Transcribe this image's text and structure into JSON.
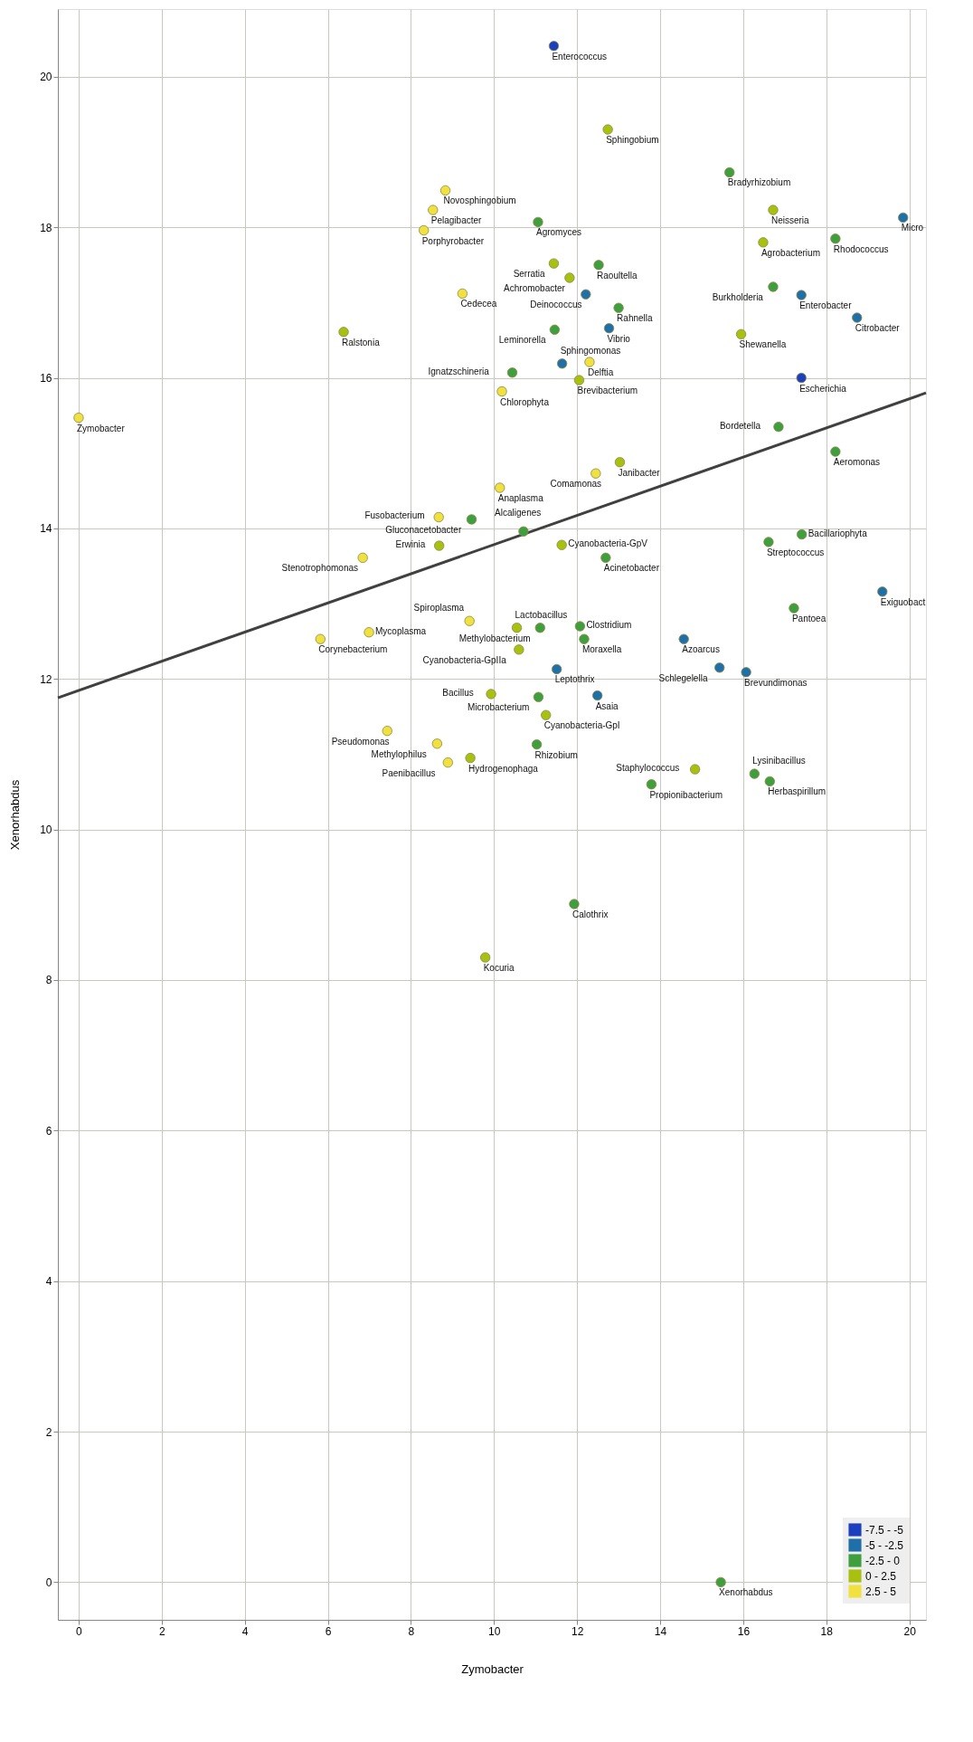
{
  "chart_data": {
    "type": "scatter",
    "xlabel": "Zymobacter",
    "ylabel": "Xenorhabdus",
    "xlim": [
      -0.5,
      20.4
    ],
    "ylim": [
      -0.5,
      20.9
    ],
    "xticks": [
      0,
      2,
      4,
      6,
      8,
      10,
      12,
      14,
      16,
      18,
      20
    ],
    "yticks": [
      0,
      2,
      4,
      6,
      8,
      10,
      12,
      14,
      16,
      18,
      20
    ],
    "grid": true,
    "legend": "bottom right",
    "marker": "circle",
    "series": [
      {
        "name": "-7.5 - -5",
        "color": "#1a3fbf",
        "x": [
          11.44,
          17.4
        ],
        "values": [
          20.41,
          16.0
        ]
      },
      {
        "name": "-5 - -2.5",
        "color": "#1f6fa8",
        "x": [
          19.85,
          17.4,
          18.74,
          12.21,
          12.77,
          11.64,
          11.51,
          12.49,
          14.57,
          15.43,
          16.07,
          19.35
        ],
        "values": [
          18.13,
          17.1,
          16.8,
          17.11,
          16.66,
          16.19,
          12.13,
          11.78,
          12.53,
          12.15,
          12.09,
          13.16
        ]
      },
      {
        "name": "-2.5 - 0",
        "color": "#3f9f3f",
        "x": [
          15.67,
          16.72,
          18.22,
          16.85,
          18.22,
          11.06,
          12.52,
          13.0,
          11.46,
          10.44,
          9.46,
          10.71,
          12.69,
          11.11,
          12.07,
          12.17,
          11.07,
          11.03,
          13.79,
          16.27,
          16.64,
          16.61,
          17.41,
          17.22,
          11.93,
          15.46
        ],
        "values": [
          18.73,
          17.21,
          17.85,
          15.35,
          15.02,
          18.07,
          17.5,
          16.93,
          16.64,
          16.07,
          14.12,
          13.96,
          13.61,
          12.68,
          12.7,
          12.53,
          11.76,
          11.13,
          10.6,
          10.74,
          10.64,
          13.82,
          13.92,
          12.94,
          9.01,
          0
        ]
      },
      {
        "name": "0 - 2.5",
        "color": "#a8c010",
        "x": [
          6.38,
          12.74,
          16.72,
          16.48,
          15.95,
          11.44,
          11.82,
          12.05,
          13.03,
          8.68,
          11.63,
          9.43,
          10.55,
          10.6,
          11.25,
          9.93,
          14.84,
          9.79
        ],
        "values": [
          16.61,
          19.3,
          18.23,
          17.8,
          16.58,
          17.52,
          17.33,
          15.97,
          14.88,
          13.77,
          13.78,
          10.95,
          12.68,
          12.39,
          11.52,
          11.8,
          10.8,
          8.3
        ]
      },
      {
        "name": "2.5 - 5",
        "color": "#f0e040",
        "x": [
          0,
          8.83,
          8.53,
          8.31,
          9.24,
          12.3,
          10.19,
          10.14,
          12.45,
          8.67,
          6.84,
          5.82,
          6.99,
          7.43,
          8.63,
          8.89,
          9.41
        ],
        "values": [
          15.47,
          18.49,
          18.23,
          17.96,
          17.12,
          16.21,
          15.82,
          14.54,
          14.73,
          14.15,
          13.61,
          12.53,
          12.62,
          11.31,
          11.14,
          10.89,
          12.77
        ]
      },
      {
        "type": "line",
        "marker": "none",
        "color": "#404040",
        "x": [
          -0.5,
          20.4
        ],
        "values": [
          11.75,
          15.8
        ]
      }
    ],
    "annotations": [
      {
        "text": "Enterococcus",
        "x": 11.44,
        "y": 20.41
      },
      {
        "text": "Escherichia",
        "x": 17.4,
        "y": 16.0
      },
      {
        "text": "Micro",
        "x": 19.85,
        "y": 18.13
      },
      {
        "text": "Enterobacter",
        "x": 17.4,
        "y": 17.1
      },
      {
        "text": "Citrobacter",
        "x": 18.74,
        "y": 16.8
      },
      {
        "text": "Deinococcus",
        "x": 12.21,
        "y": 17.11
      },
      {
        "text": "Vibrio",
        "x": 12.77,
        "y": 16.66
      },
      {
        "text": "Sphingomonas",
        "x": 11.64,
        "y": 16.19
      },
      {
        "text": "Leptothrix",
        "x": 11.51,
        "y": 12.13
      },
      {
        "text": "Asaia",
        "x": 12.49,
        "y": 11.78
      },
      {
        "text": "Azoarcus",
        "x": 14.57,
        "y": 12.53
      },
      {
        "text": "Schlegelella",
        "x": 15.43,
        "y": 12.15
      },
      {
        "text": "Brevundimonas",
        "x": 16.07,
        "y": 12.09
      },
      {
        "text": "Exiguobact",
        "x": 19.35,
        "y": 13.16
      },
      {
        "text": "Bradyrhizobium",
        "x": 15.67,
        "y": 18.73
      },
      {
        "text": "Burkholderia",
        "x": 16.72,
        "y": 17.21
      },
      {
        "text": "Rhodococcus",
        "x": 18.22,
        "y": 17.85
      },
      {
        "text": "Bordetella",
        "x": 16.85,
        "y": 15.35
      },
      {
        "text": "Aeromonas",
        "x": 18.22,
        "y": 15.02
      },
      {
        "text": "Agromyces",
        "x": 11.06,
        "y": 18.07
      },
      {
        "text": "Raoultella",
        "x": 12.52,
        "y": 17.5
      },
      {
        "text": "Rahnella",
        "x": 13.0,
        "y": 16.93
      },
      {
        "text": "Leminorella",
        "x": 11.46,
        "y": 16.64
      },
      {
        "text": "Ignatzschineria",
        "x": 10.44,
        "y": 16.07
      },
      {
        "text": "Gluconacetobacter",
        "x": 9.46,
        "y": 14.12
      },
      {
        "text": "Alcaligenes",
        "x": 10.71,
        "y": 13.96
      },
      {
        "text": "Acinetobacter",
        "x": 12.69,
        "y": 13.61
      },
      {
        "text": "Methylobacterium",
        "x": 11.11,
        "y": 12.68
      },
      {
        "text": "Clostridium",
        "x": 12.07,
        "y": 12.7
      },
      {
        "text": "Moraxella",
        "x": 12.17,
        "y": 12.53
      },
      {
        "text": "Microbacterium",
        "x": 11.07,
        "y": 11.76
      },
      {
        "text": "Rhizobium",
        "x": 11.03,
        "y": 11.13
      },
      {
        "text": "Propionibacterium",
        "x": 13.79,
        "y": 10.6
      },
      {
        "text": "Lysinibacillus",
        "x": 16.27,
        "y": 10.74
      },
      {
        "text": "Herbaspirillum",
        "x": 16.64,
        "y": 10.64
      },
      {
        "text": "Streptococcus",
        "x": 16.61,
        "y": 13.82
      },
      {
        "text": "Bacillariophyta",
        "x": 17.41,
        "y": 13.92
      },
      {
        "text": "Pantoea",
        "x": 17.22,
        "y": 12.94
      },
      {
        "text": "Calothrix",
        "x": 11.93,
        "y": 9.01
      },
      {
        "text": "Xenorhabdus",
        "x": 15.46,
        "y": 0
      },
      {
        "text": "Ralstonia",
        "x": 6.38,
        "y": 16.61
      },
      {
        "text": "Sphingobium",
        "x": 12.74,
        "y": 19.3
      },
      {
        "text": "Neisseria",
        "x": 16.72,
        "y": 18.23
      },
      {
        "text": "Agrobacterium",
        "x": 16.48,
        "y": 17.8
      },
      {
        "text": "Shewanella",
        "x": 15.95,
        "y": 16.58
      },
      {
        "text": "Serratia",
        "x": 11.44,
        "y": 17.52
      },
      {
        "text": "Achromobacter",
        "x": 11.82,
        "y": 17.33
      },
      {
        "text": "Brevibacterium",
        "x": 12.05,
        "y": 15.97
      },
      {
        "text": "Janibacter",
        "x": 13.03,
        "y": 14.88
      },
      {
        "text": "Erwinia",
        "x": 8.68,
        "y": 13.77
      },
      {
        "text": "Cyanobacteria-GpV",
        "x": 11.63,
        "y": 13.78
      },
      {
        "text": "Hydrogenophaga",
        "x": 9.43,
        "y": 10.95
      },
      {
        "text": "Lactobacillus",
        "x": 10.55,
        "y": 12.68
      },
      {
        "text": "Cyanobacteria-GpIIa",
        "x": 10.6,
        "y": 12.39
      },
      {
        "text": "Cyanobacteria-GpI",
        "x": 11.25,
        "y": 11.52
      },
      {
        "text": "Bacillus",
        "x": 9.93,
        "y": 11.8
      },
      {
        "text": "Staphylococcus",
        "x": 14.84,
        "y": 10.8
      },
      {
        "text": "Kocuria",
        "x": 9.79,
        "y": 8.3
      },
      {
        "text": "Zymobacter",
        "x": 0,
        "y": 15.47
      },
      {
        "text": "Novosphingobium",
        "x": 8.83,
        "y": 18.49
      },
      {
        "text": "Pelagibacter",
        "x": 8.53,
        "y": 18.23
      },
      {
        "text": "Porphyrobacter",
        "x": 8.31,
        "y": 17.96
      },
      {
        "text": "Cedecea",
        "x": 9.24,
        "y": 17.12
      },
      {
        "text": "Delftia",
        "x": 12.3,
        "y": 16.21
      },
      {
        "text": "Chlorophyta",
        "x": 10.19,
        "y": 15.82
      },
      {
        "text": "Anaplasma",
        "x": 10.14,
        "y": 14.54
      },
      {
        "text": "Comamonas",
        "x": 12.45,
        "y": 14.73
      },
      {
        "text": "Fusobacterium",
        "x": 8.67,
        "y": 14.15
      },
      {
        "text": "Stenotrophomonas",
        "x": 6.84,
        "y": 13.61
      },
      {
        "text": "Corynebacterium",
        "x": 5.82,
        "y": 12.53
      },
      {
        "text": "Mycoplasma",
        "x": 6.99,
        "y": 12.62
      },
      {
        "text": "Pseudomonas",
        "x": 7.43,
        "y": 11.31
      },
      {
        "text": "Methylophilus",
        "x": 8.63,
        "y": 11.14
      },
      {
        "text": "Paenibacillus",
        "x": 8.89,
        "y": 10.89
      },
      {
        "text": "Spiroplasma",
        "x": 9.41,
        "y": 12.77
      }
    ]
  }
}
